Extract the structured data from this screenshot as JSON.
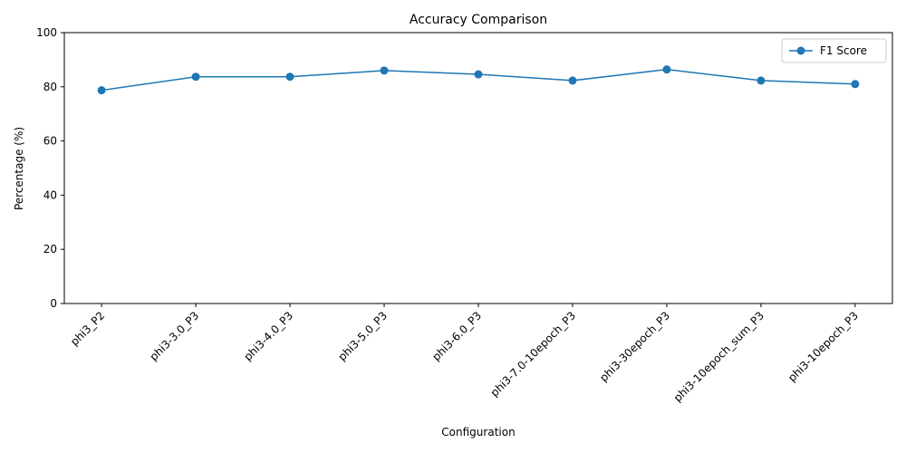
{
  "chart_data": {
    "type": "line",
    "title": "Accuracy Comparison",
    "xlabel": "Configuration",
    "ylabel": "Percentage (%)",
    "categories": [
      "phi3_P2",
      "phi3-3.0_P3",
      "phi3-4.0_P3",
      "phi3-5.0_P3",
      "phi3-6.0_P3",
      "phi3-7.0-10epoch_P3",
      "phi3-30epoch_P3",
      "phi3-10epoch_sum_P3",
      "phi3-10epoch_P3"
    ],
    "series": [
      {
        "name": "F1 Score",
        "values": [
          78.7,
          83.7,
          83.7,
          86.0,
          84.6,
          82.3,
          86.4,
          82.3,
          81.0
        ]
      }
    ],
    "ylim": [
      0,
      100
    ],
    "yticks": [
      "0",
      "20",
      "40",
      "60",
      "80",
      "100"
    ],
    "grid": false,
    "legend_position": "top-right",
    "colors": {
      "series": "#1f77b4",
      "axes": "#000000"
    }
  }
}
